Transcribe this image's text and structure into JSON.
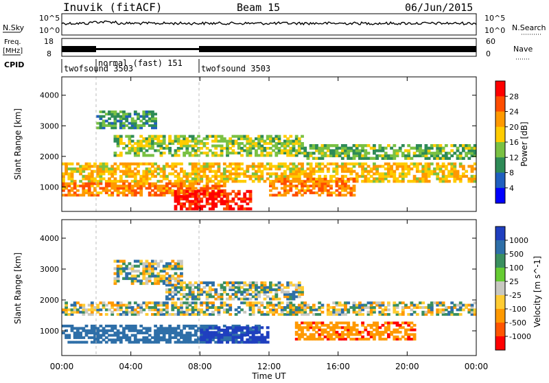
{
  "header": {
    "station": "Inuvik (fitACF)",
    "beam": "Beam 15",
    "date": "06/Jun/2015"
  },
  "noise_panel": {
    "left_label": "N.Sky",
    "right_label": "N.Search",
    "ticks_left": [
      "10^5",
      "10^0"
    ],
    "ticks_right": [
      "10^5",
      "10^0"
    ]
  },
  "freq_panel": {
    "left_label_1": "Freq.",
    "left_label_2": "[MHz]",
    "right_label": "Nave",
    "ticks_left": [
      "18",
      "8"
    ],
    "ticks_right": [
      "60",
      "0"
    ]
  },
  "cpid": {
    "label": "CPID",
    "segments": [
      {
        "name": "twofsound 3503",
        "start_h": 0,
        "end_h": 2.0
      },
      {
        "name": "normal (fast) 151",
        "start_h": 2.0,
        "end_h": 8.0
      },
      {
        "name": "twofsound 3503",
        "start_h": 8.0,
        "end_h": 24.0
      }
    ]
  },
  "power_panel": {
    "ylabel": "Slant Range [km]",
    "colorbar_label": "Power [dB]",
    "colorbar_ticks": [
      "28",
      "24",
      "20",
      "16",
      "12",
      "8",
      "4"
    ],
    "colorbar_colors": [
      "#ff0000",
      "#ff4d00",
      "#ff9900",
      "#ffcc00",
      "#7ac143",
      "#2e8b57",
      "#1f5fbf",
      "#0000ff"
    ]
  },
  "velocity_panel": {
    "ylabel": "Slant Range [km]",
    "colorbar_label": "Velocity [m s^-1]",
    "colorbar_ticks": [
      "1000",
      "500",
      "100",
      "25",
      "-25",
      "-100",
      "-500",
      "-1000"
    ],
    "colorbar_colors": [
      "#1f3fbf",
      "#2e6fa8",
      "#3a8f5f",
      "#66cc33",
      "#c8c8c0",
      "#ffcc33",
      "#ff9900",
      "#ff5500",
      "#ff0000"
    ]
  },
  "xaxis": {
    "label": "Time UT",
    "ticks": [
      "00:00",
      "04:00",
      "08:00",
      "12:00",
      "16:00",
      "20:00",
      "00:00"
    ]
  },
  "chart_data": {
    "type": "heatmap",
    "title": "Inuvik (fitACF) Beam 15 06/Jun/2015",
    "xlabel": "Time UT",
    "ylabel": "Slant Range [km]",
    "xlim_hours": [
      0,
      24
    ],
    "ylim_km": [
      200,
      4600
    ],
    "yticks_km": [
      1000,
      2000,
      3000,
      4000
    ],
    "xticks": [
      "00:00",
      "04:00",
      "08:00",
      "12:00",
      "16:00",
      "20:00",
      "00:00"
    ],
    "grid": false,
    "power_scale_db": {
      "min": 0,
      "max": 30,
      "ticks": [
        4,
        8,
        12,
        16,
        20,
        24,
        28
      ]
    },
    "velocity_scale_ms": {
      "ticks": [
        1000,
        500,
        100,
        25,
        -25,
        -100,
        -500,
        -1000
      ]
    },
    "power_regions": [
      {
        "t0": 0.0,
        "t1": 24.0,
        "r0": 1150,
        "r1": 1800,
        "db": 18
      },
      {
        "t0": 0.0,
        "t1": 9.5,
        "r0": 700,
        "r1": 1150,
        "db": 22
      },
      {
        "t0": 6.5,
        "t1": 11.0,
        "r0": 250,
        "r1": 900,
        "db": 28
      },
      {
        "t0": 12.0,
        "t1": 17.0,
        "r0": 700,
        "r1": 1300,
        "db": 22
      },
      {
        "t0": 2.0,
        "t1": 5.5,
        "r0": 2900,
        "r1": 3500,
        "db": 10
      },
      {
        "t0": 3.0,
        "t1": 14.0,
        "r0": 2000,
        "r1": 2700,
        "db": 14
      },
      {
        "t0": 14.0,
        "t1": 24.0,
        "r0": 1900,
        "r1": 2400,
        "db": 12
      }
    ],
    "velocity_regions": [
      {
        "t0": 0.0,
        "t1": 24.0,
        "r0": 1500,
        "r1": 1950,
        "vel": 0
      },
      {
        "t0": 0.0,
        "t1": 11.5,
        "r0": 600,
        "r1": 1200,
        "vel": 300
      },
      {
        "t0": 8.0,
        "t1": 12.0,
        "r0": 600,
        "r1": 1150,
        "vel": 1000
      },
      {
        "t0": 13.5,
        "t1": 20.5,
        "r0": 700,
        "r1": 1300,
        "vel": -400
      },
      {
        "t0": 3.0,
        "t1": 7.0,
        "r0": 2500,
        "r1": 3300,
        "vel": 0
      },
      {
        "t0": 6.0,
        "t1": 14.0,
        "r0": 2000,
        "r1": 2600,
        "vel": 20
      }
    ]
  }
}
